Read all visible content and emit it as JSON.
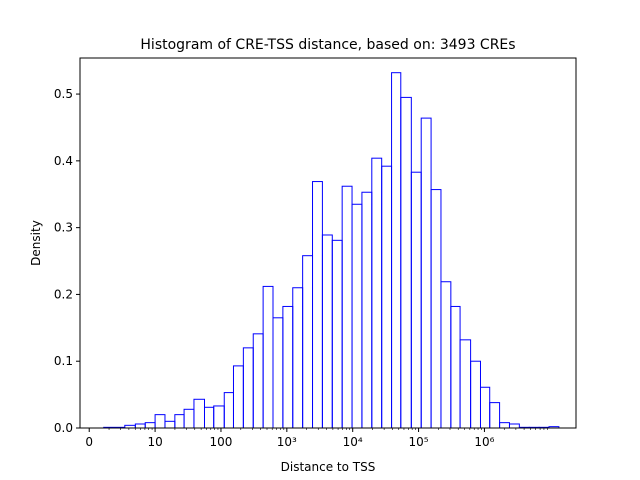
{
  "chart_data": {
    "type": "histogram",
    "title": "Histogram of CRE-TSS distance, based on: 3493 CREs",
    "xlabel": "Distance to TSS",
    "ylabel": "Density",
    "x_scale": "symlog",
    "x_tick_labels": [
      {
        "value": 0,
        "label": "0"
      },
      {
        "value": 10,
        "label": "10"
      },
      {
        "value": 100,
        "label": "100"
      },
      {
        "value": 1000,
        "label": "10³"
      },
      {
        "value": 10000,
        "label": "10⁴"
      },
      {
        "value": 100000,
        "label": "10⁵"
      },
      {
        "value": 1000000,
        "label": "10⁶"
      }
    ],
    "y_ticks": [
      0.0,
      0.1,
      0.2,
      0.3,
      0.4,
      0.5
    ],
    "y_tick_labels": [
      "0.0",
      "0.1",
      "0.2",
      "0.3",
      "0.4",
      "0.5"
    ],
    "ylim": [
      0,
      0.554
    ],
    "grid": false,
    "series_color": "#0000ff",
    "bin_edges_log10": [
      0.22,
      0.54,
      0.7,
      0.85,
      1.0,
      1.15,
      1.3,
      1.44,
      1.59,
      1.75,
      1.89,
      2.05,
      2.19,
      2.34,
      2.49,
      2.64,
      2.79,
      2.94,
      3.09,
      3.24,
      3.39,
      3.54,
      3.69,
      3.84,
      3.99,
      4.14,
      4.29,
      4.44,
      4.59,
      4.73,
      4.89,
      5.04,
      5.19,
      5.34,
      5.49,
      5.63,
      5.79,
      5.94,
      6.08,
      6.23,
      6.38,
      6.53,
      6.68,
      6.83,
      6.98,
      7.13
    ],
    "densities": [
      0.001,
      0.004,
      0.006,
      0.008,
      0.02,
      0.01,
      0.02,
      0.028,
      0.043,
      0.031,
      0.033,
      0.053,
      0.093,
      0.12,
      0.141,
      0.212,
      0.165,
      0.182,
      0.21,
      0.258,
      0.369,
      0.289,
      0.281,
      0.362,
      0.335,
      0.353,
      0.404,
      0.392,
      0.532,
      0.495,
      0.383,
      0.464,
      0.357,
      0.219,
      0.182,
      0.132,
      0.1,
      0.061,
      0.038,
      0.008,
      0.006,
      0.001,
      0.001,
      0.001,
      0.002
    ]
  }
}
